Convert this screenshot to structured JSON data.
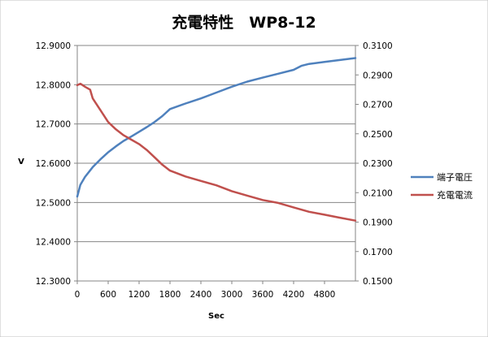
{
  "chart_data": {
    "type": "line",
    "title": "充電特性　WP8-12",
    "xlabel": "Sec",
    "ylabel_left": "V",
    "ylabel_right": "",
    "xlim": [
      0,
      5400
    ],
    "x_ticks": [
      0,
      600,
      1200,
      1800,
      2400,
      3000,
      3600,
      4200,
      4800
    ],
    "ylim_left": [
      12.3,
      12.9
    ],
    "y_ticks_left": [
      "12.3000",
      "12.4000",
      "12.5000",
      "12.6000",
      "12.7000",
      "12.8000",
      "12.9000"
    ],
    "ylim_right": [
      0.15,
      0.31
    ],
    "y_ticks_right": [
      "0.1500",
      "0.1700",
      "0.1900",
      "0.2100",
      "0.2300",
      "0.2500",
      "0.2700",
      "0.2900",
      "0.3100"
    ],
    "grid": "horizontal",
    "legend_position": "right",
    "series": [
      {
        "name": "端子電圧",
        "axis": "left",
        "color": "#4f81bd",
        "x": [
          0,
          60,
          150,
          300,
          450,
          600,
          750,
          900,
          1050,
          1200,
          1350,
          1500,
          1650,
          1800,
          2100,
          2400,
          2700,
          3000,
          3300,
          3600,
          3900,
          4200,
          4350,
          4500,
          4800,
          5100,
          5400
        ],
        "y": [
          12.515,
          12.545,
          12.565,
          12.59,
          12.61,
          12.628,
          12.643,
          12.657,
          12.668,
          12.68,
          12.692,
          12.705,
          12.72,
          12.738,
          12.752,
          12.765,
          12.78,
          12.795,
          12.808,
          12.818,
          12.828,
          12.838,
          12.848,
          12.853,
          12.858,
          12.863,
          12.868
        ]
      },
      {
        "name": "充電電流",
        "axis": "right",
        "color": "#c0504d",
        "x": [
          0,
          60,
          150,
          250,
          300,
          450,
          600,
          750,
          900,
          1050,
          1200,
          1350,
          1500,
          1650,
          1800,
          2100,
          2400,
          2700,
          3000,
          3300,
          3600,
          3900,
          4200,
          4500,
          4800,
          5100,
          5400
        ],
        "y": [
          0.283,
          0.284,
          0.282,
          0.28,
          0.274,
          0.266,
          0.258,
          0.253,
          0.249,
          0.246,
          0.243,
          0.239,
          0.234,
          0.229,
          0.225,
          0.221,
          0.218,
          0.215,
          0.211,
          0.208,
          0.205,
          0.203,
          0.2,
          0.197,
          0.195,
          0.193,
          0.191
        ]
      }
    ]
  }
}
